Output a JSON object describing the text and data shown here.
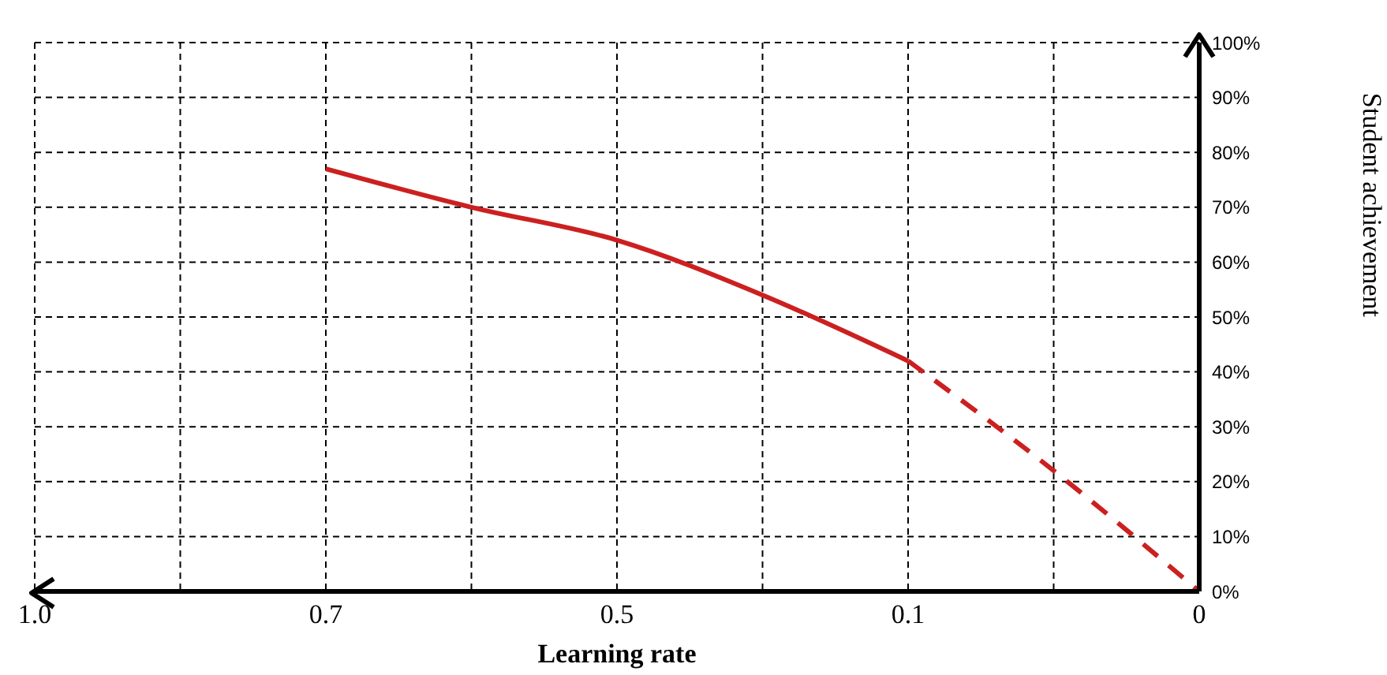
{
  "chart_data": {
    "type": "line",
    "xlabel": "Learning rate",
    "ylabel": "Student achievement",
    "categories": [
      "1.0",
      null,
      "0.7",
      null,
      "0.5",
      null,
      "0.1",
      null,
      "0"
    ],
    "series": [
      {
        "color": "#cc2020",
        "line_style": "solid",
        "values": [
          null,
          null,
          77,
          70,
          64,
          54,
          42,
          null,
          null
        ]
      },
      {
        "color": "#cc2020",
        "line_style": "dashed",
        "values": [
          null,
          null,
          null,
          null,
          null,
          null,
          42,
          22,
          0
        ]
      }
    ],
    "ylim": [
      0,
      100
    ],
    "yticks": [
      {
        "value": 0,
        "label": "0%"
      },
      {
        "value": 10,
        "label": "10%"
      },
      {
        "value": 20,
        "label": "20%"
      },
      {
        "value": 30,
        "label": "30%"
      },
      {
        "value": 40,
        "label": "40%"
      },
      {
        "value": 50,
        "label": "50%"
      },
      {
        "value": 60,
        "label": "60%"
      },
      {
        "value": 70,
        "label": "70%"
      },
      {
        "value": 80,
        "label": "80%"
      },
      {
        "value": 90,
        "label": "90%"
      },
      {
        "value": 100,
        "label": "100%"
      }
    ],
    "grid": true
  }
}
